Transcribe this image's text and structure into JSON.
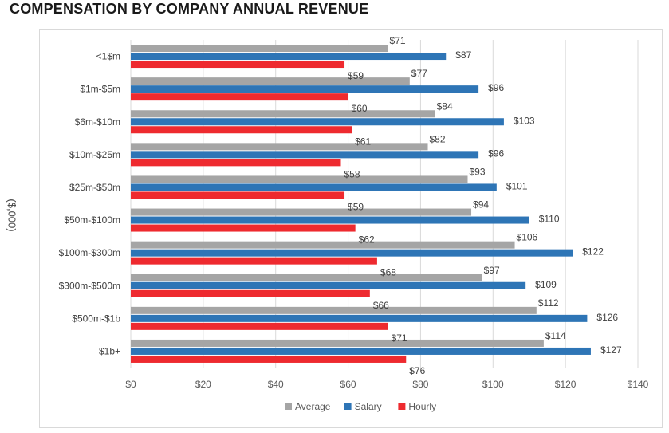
{
  "chart_data": {
    "type": "bar",
    "orientation": "horizontal",
    "title": "COMPENSATION BY COMPANY ANNUAL REVENUE",
    "ylabel": "($,000)",
    "xlabel": "",
    "xlim": [
      0,
      140
    ],
    "x_ticks": [
      0,
      20,
      40,
      60,
      80,
      100,
      120,
      140
    ],
    "x_tick_labels": [
      "$0",
      "$20",
      "$40",
      "$60",
      "$80",
      "$100",
      "$120",
      "$140"
    ],
    "grid": "vertical",
    "legend_position": "bottom",
    "value_prefix": "$",
    "categories": [
      "<1$m",
      "$1m-$5m",
      "$6m-$10m",
      "$10m-$25m",
      "$25m-$50m",
      "$50m-$100m",
      "$100m-$300m",
      "$300m-$500m",
      "$500m-$1b",
      "$1b+"
    ],
    "series": [
      {
        "name": "Average",
        "color": "#a5a5a5",
        "values": [
          71,
          77,
          84,
          82,
          93,
          94,
          106,
          97,
          112,
          114
        ]
      },
      {
        "name": "Salary",
        "color": "#2e75b6",
        "values": [
          87,
          96,
          103,
          96,
          101,
          110,
          122,
          109,
          126,
          127
        ]
      },
      {
        "name": "Hourly",
        "color": "#ee2a2f",
        "values": [
          59,
          60,
          61,
          58,
          59,
          62,
          68,
          66,
          71,
          76
        ]
      }
    ]
  }
}
